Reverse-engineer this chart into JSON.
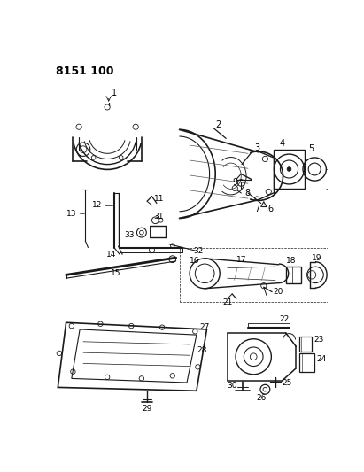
{
  "title": "8151 100",
  "bg": "#ffffff",
  "lc": "#1a1a1a",
  "tc": "#000000",
  "fig_w": 4.11,
  "fig_h": 5.33,
  "dpi": 100
}
